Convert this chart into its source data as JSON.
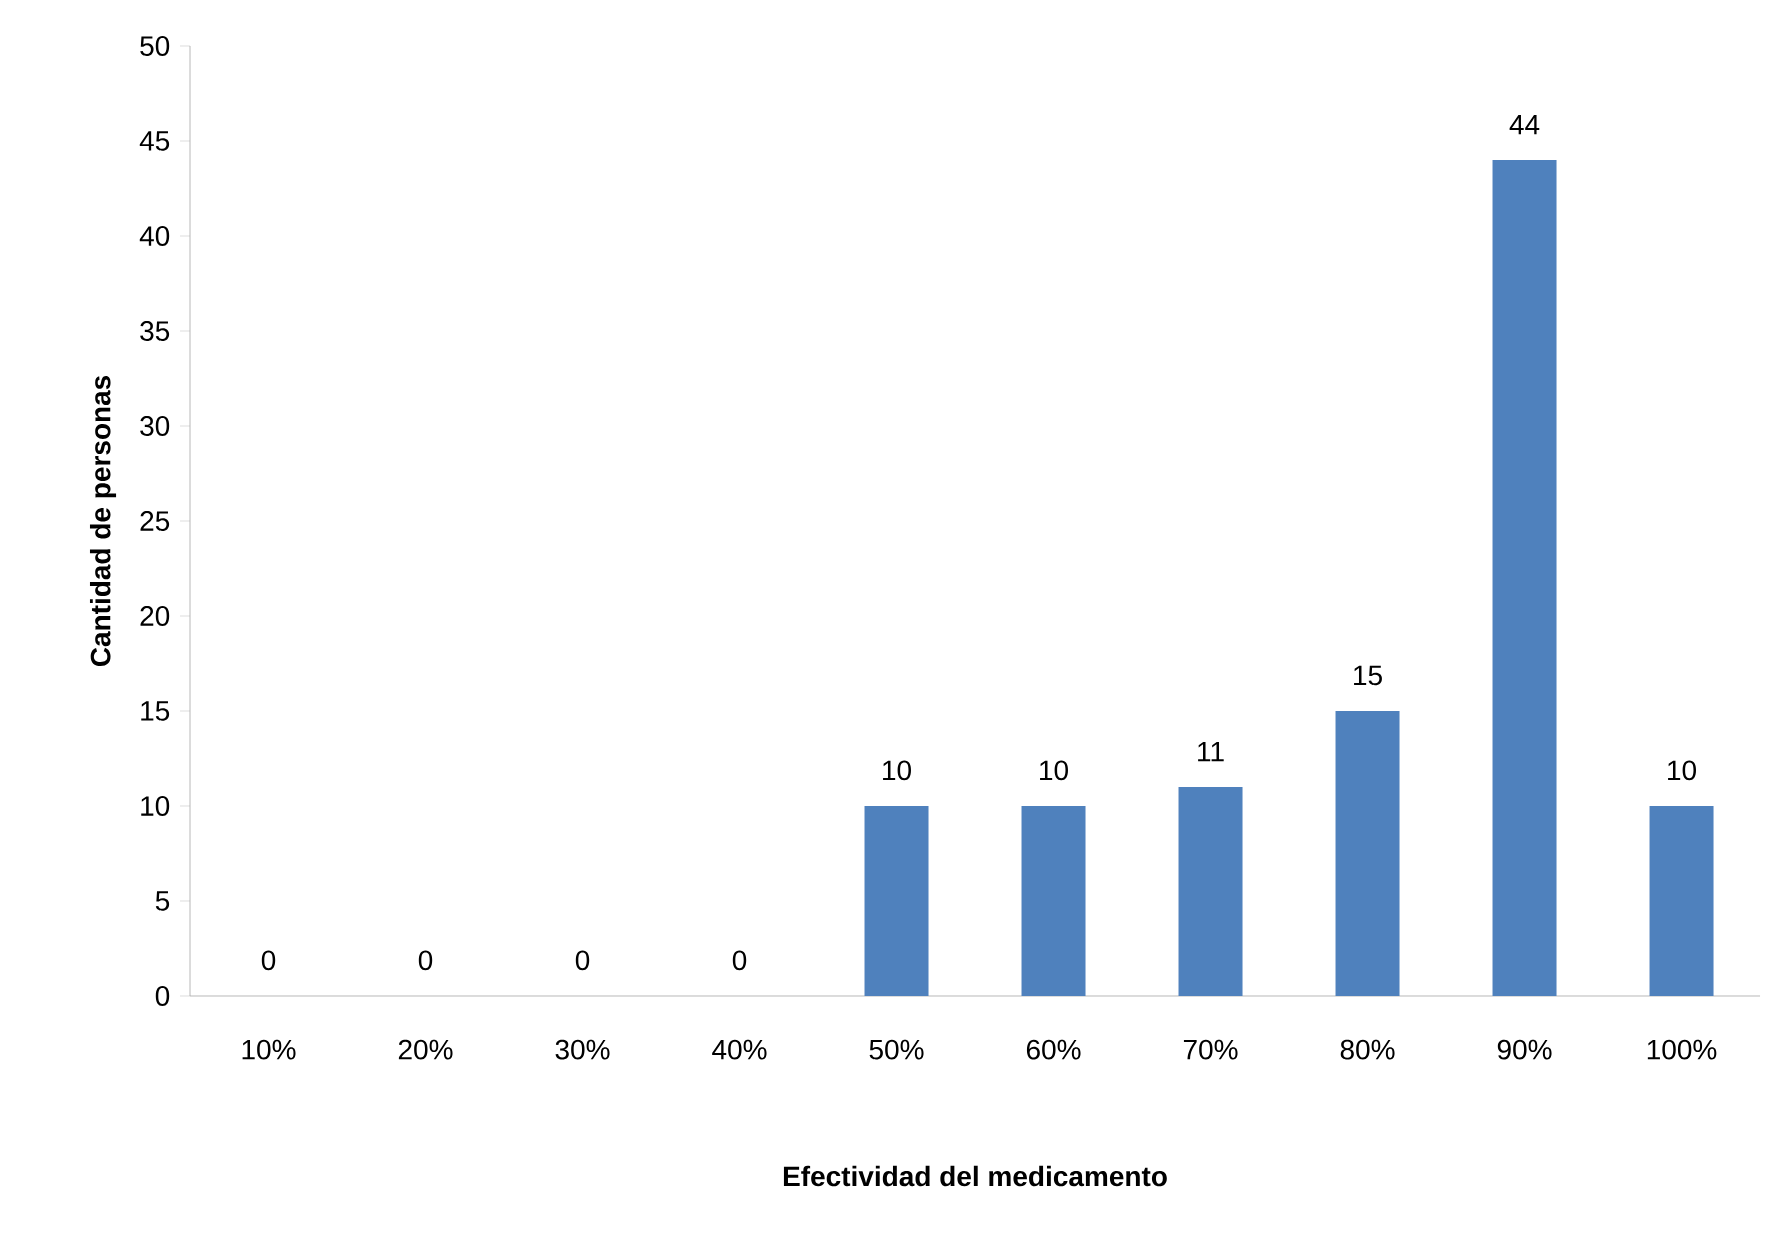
{
  "chart_data": {
    "type": "bar",
    "xlabel": "Efectividad del medicamento",
    "ylabel": "Cantidad de personas",
    "categories": [
      "10%",
      "20%",
      "30%",
      "40%",
      "50%",
      "60%",
      "70%",
      "80%",
      "90%",
      "100%"
    ],
    "values": [
      0,
      0,
      0,
      0,
      10,
      10,
      11,
      15,
      44,
      10
    ],
    "color": "#4f81bd",
    "ylim": [
      0,
      50
    ],
    "yticks": [
      0,
      5,
      10,
      15,
      20,
      25,
      30,
      35,
      40,
      45,
      50
    ],
    "data_labels": true
  }
}
